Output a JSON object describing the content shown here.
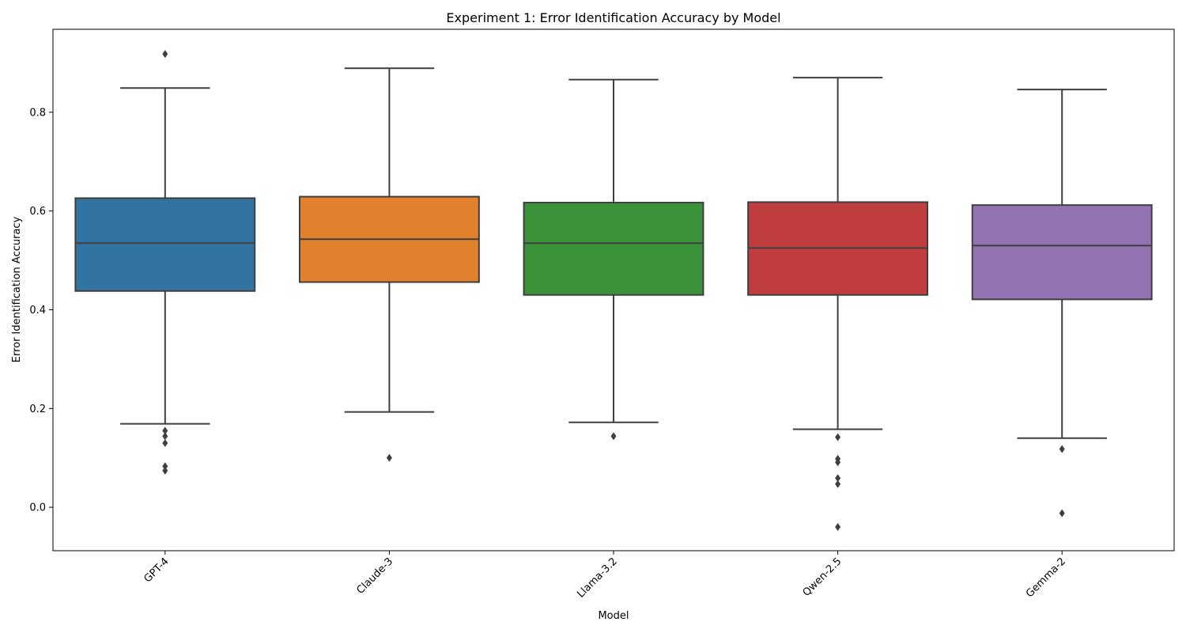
{
  "chart_data": {
    "type": "box",
    "title": "Experiment 1: Error Identification Accuracy by Model",
    "xlabel": "Model",
    "ylabel": "Error Identification Accuracy",
    "ylim": [
      -0.088,
      0.968
    ],
    "yticks": [
      0.0,
      0.2,
      0.4,
      0.6,
      0.8
    ],
    "ytick_labels": [
      "0.0",
      "0.2",
      "0.4",
      "0.6",
      "0.8"
    ],
    "grid": false,
    "legend": "none",
    "categories": [
      "GPT-4",
      "Claude-3",
      "Llama-3.2",
      "Qwen-2.5",
      "Gemma-2"
    ],
    "boxes": [
      {
        "name": "GPT-4",
        "color": "#3274a1",
        "whisker_low": 0.169,
        "q1": 0.438,
        "median": 0.535,
        "q3": 0.626,
        "whisker_high": 0.849,
        "outliers": [
          0.918,
          0.155,
          0.144,
          0.13,
          0.083,
          0.074
        ]
      },
      {
        "name": "Claude-3",
        "color": "#e1812c",
        "whisker_low": 0.193,
        "q1": 0.456,
        "median": 0.543,
        "q3": 0.629,
        "whisker_high": 0.889,
        "outliers": [
          0.1
        ]
      },
      {
        "name": "Llama-3.2",
        "color": "#3a923a",
        "whisker_low": 0.172,
        "q1": 0.43,
        "median": 0.535,
        "q3": 0.617,
        "whisker_high": 0.866,
        "outliers": [
          0.144
        ]
      },
      {
        "name": "Qwen-2.5",
        "color": "#c03d3e",
        "whisker_low": 0.158,
        "q1": 0.43,
        "median": 0.525,
        "q3": 0.618,
        "whisker_high": 0.87,
        "outliers": [
          0.142,
          0.098,
          0.091,
          0.059,
          0.047,
          -0.04
        ]
      },
      {
        "name": "Gemma-2",
        "color": "#9372b2",
        "whisker_low": 0.14,
        "q1": 0.421,
        "median": 0.53,
        "q3": 0.612,
        "whisker_high": 0.846,
        "outliers": [
          0.118,
          -0.012
        ]
      }
    ]
  }
}
